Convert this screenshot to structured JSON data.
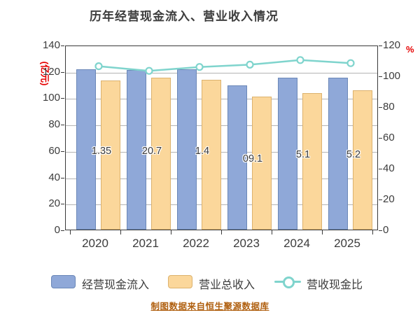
{
  "title": "历年经营现金流入、营业收入情况",
  "attribution": "制图数据来自恒生聚源数据库",
  "chart_data": {
    "type": "bar",
    "subtype": "grouped-bar-with-line-overlay",
    "categories": [
      "2020",
      "2021",
      "2022",
      "2023",
      "2024",
      "2025"
    ],
    "series": [
      {
        "name": "经营现金流入",
        "type": "bar",
        "axis": "left",
        "color": "#8fa8d8",
        "values": [
          121.35,
          120.7,
          121.4,
          109.1,
          115.1,
          115.2
        ]
      },
      {
        "name": "营业总收入",
        "type": "bar",
        "axis": "left",
        "color": "#fbd79b",
        "values": [
          113.0,
          115.0,
          113.5,
          101.0,
          103.5,
          105.5
        ]
      },
      {
        "name": "营收现金比",
        "type": "line",
        "axis": "right",
        "color": "#7fd4cd",
        "values": [
          107.0,
          104.0,
          106.5,
          108.0,
          111.0,
          109.0
        ]
      }
    ],
    "bar_labels_visible": [
      "1.35",
      "20.7",
      "1.4",
      "09.1",
      "5.1",
      "5.2"
    ],
    "left_axis": {
      "label": "(亿元)",
      "min": 0,
      "max": 140,
      "step": 20,
      "ticks": [
        140,
        120,
        100,
        80,
        60,
        40,
        20,
        0
      ]
    },
    "right_axis": {
      "label": "%",
      "min": 0,
      "max": 120,
      "step": 20,
      "ticks": [
        120,
        100,
        80,
        60,
        40,
        20,
        0
      ]
    },
    "grid": true,
    "legend_position": "bottom"
  },
  "colors": {
    "bar_cash_inflow": "#8fa8d8",
    "bar_revenue": "#fbd79b",
    "line_ratio": "#7fd4cd",
    "axis_text": "#3c3c3c",
    "unit_label_red": "#e60000",
    "gridline": "#b3b3b3",
    "caption": "#b06010",
    "background": "#ffffff"
  }
}
